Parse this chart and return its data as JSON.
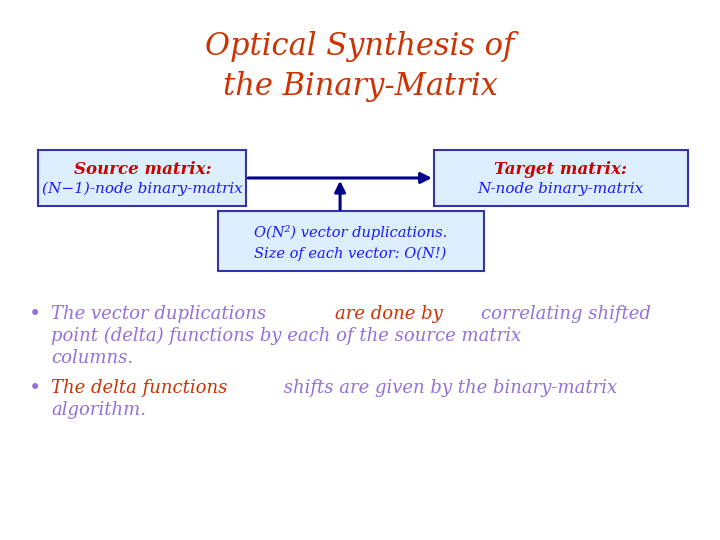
{
  "title_line1": "Optical Synthesis of",
  "title_line2": "the Binary-Matrix",
  "title_color": "#CC3300",
  "title_fontsize": 22,
  "source_box_text_line1": "Source matrix:",
  "source_box_text_line2": "(N−1)-node binary-matrix",
  "source_box_color_title": "#CC0000",
  "source_box_color_body": "#1a1aff",
  "source_box_bg": "#ddeeff",
  "source_box_edge": "#3333aa",
  "target_box_text_line1": "Target matrix:",
  "target_box_text_line2": "N-node binary-matrix",
  "target_box_color_title": "#CC0000",
  "target_box_color_body": "#1a1aff",
  "target_box_bg": "#ddeeff",
  "target_box_edge": "#3333aa",
  "bottom_box_text_line1": "O(N²) vector duplications.",
  "bottom_box_text_line2": "Size of each vector: O(N!)",
  "bottom_box_bg": "#ddeeff",
  "bottom_box_edge": "#3333aa",
  "bottom_box_color": "#1a1aff",
  "arrow_color": "#00008B",
  "bullet_fontsize": 13,
  "background_color": "#ffffff"
}
